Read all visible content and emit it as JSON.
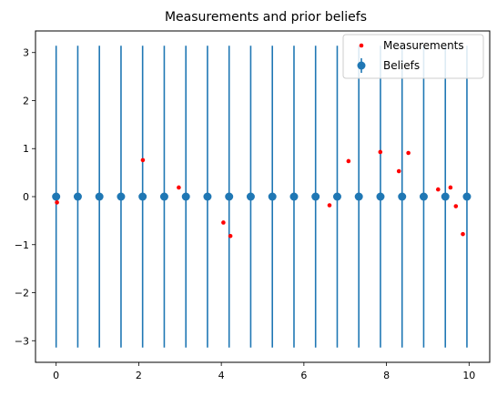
{
  "chart_data": {
    "type": "scatter",
    "title": "Measurements and prior beliefs",
    "xlabel": "",
    "ylabel": "",
    "xlim": [
      -0.5,
      10.5
    ],
    "ylim": [
      -3.45,
      3.45
    ],
    "x_ticks": [
      0,
      2,
      4,
      6,
      8,
      10
    ],
    "x_tick_labels": [
      "0",
      "2",
      "4",
      "6",
      "8",
      "10"
    ],
    "y_ticks": [
      -3,
      -2,
      -1,
      0,
      1,
      2,
      3
    ],
    "y_tick_labels": [
      "−3",
      "−2",
      "−1",
      "0",
      "1",
      "2",
      "3"
    ],
    "grid": false,
    "legend": {
      "position": "top-right",
      "entries": [
        {
          "label": "Measurements",
          "marker": "small-dot",
          "color": "#ff0000"
        },
        {
          "label": "Beliefs",
          "marker": "dot-with-errorbar",
          "color": "#1f77b4"
        }
      ]
    },
    "series": [
      {
        "name": "Beliefs",
        "kind": "errorbar",
        "color": "#1f77b4",
        "x": [
          0,
          0.524,
          1.047,
          1.571,
          2.094,
          2.618,
          3.142,
          3.665,
          4.189,
          4.712,
          5.236,
          5.76,
          6.283,
          6.807,
          7.33,
          7.854,
          8.378,
          8.901,
          9.425,
          9.948
        ],
        "y": [
          0,
          0,
          0,
          0,
          0,
          0,
          0,
          0,
          0,
          0,
          0,
          0,
          0,
          0,
          0,
          0,
          0,
          0,
          0,
          0
        ],
        "yerr": 3.14159
      },
      {
        "name": "Measurements",
        "kind": "scatter",
        "color": "#ff0000",
        "x": [
          0.02,
          2.1,
          2.97,
          4.05,
          4.22,
          6.62,
          7.08,
          7.85,
          8.3,
          8.53,
          9.25,
          9.55,
          9.68,
          9.85
        ],
        "y": [
          -0.12,
          0.76,
          0.19,
          -0.54,
          -0.82,
          -0.18,
          0.74,
          0.93,
          0.53,
          0.91,
          0.15,
          0.19,
          -0.2,
          -0.78
        ]
      }
    ]
  }
}
